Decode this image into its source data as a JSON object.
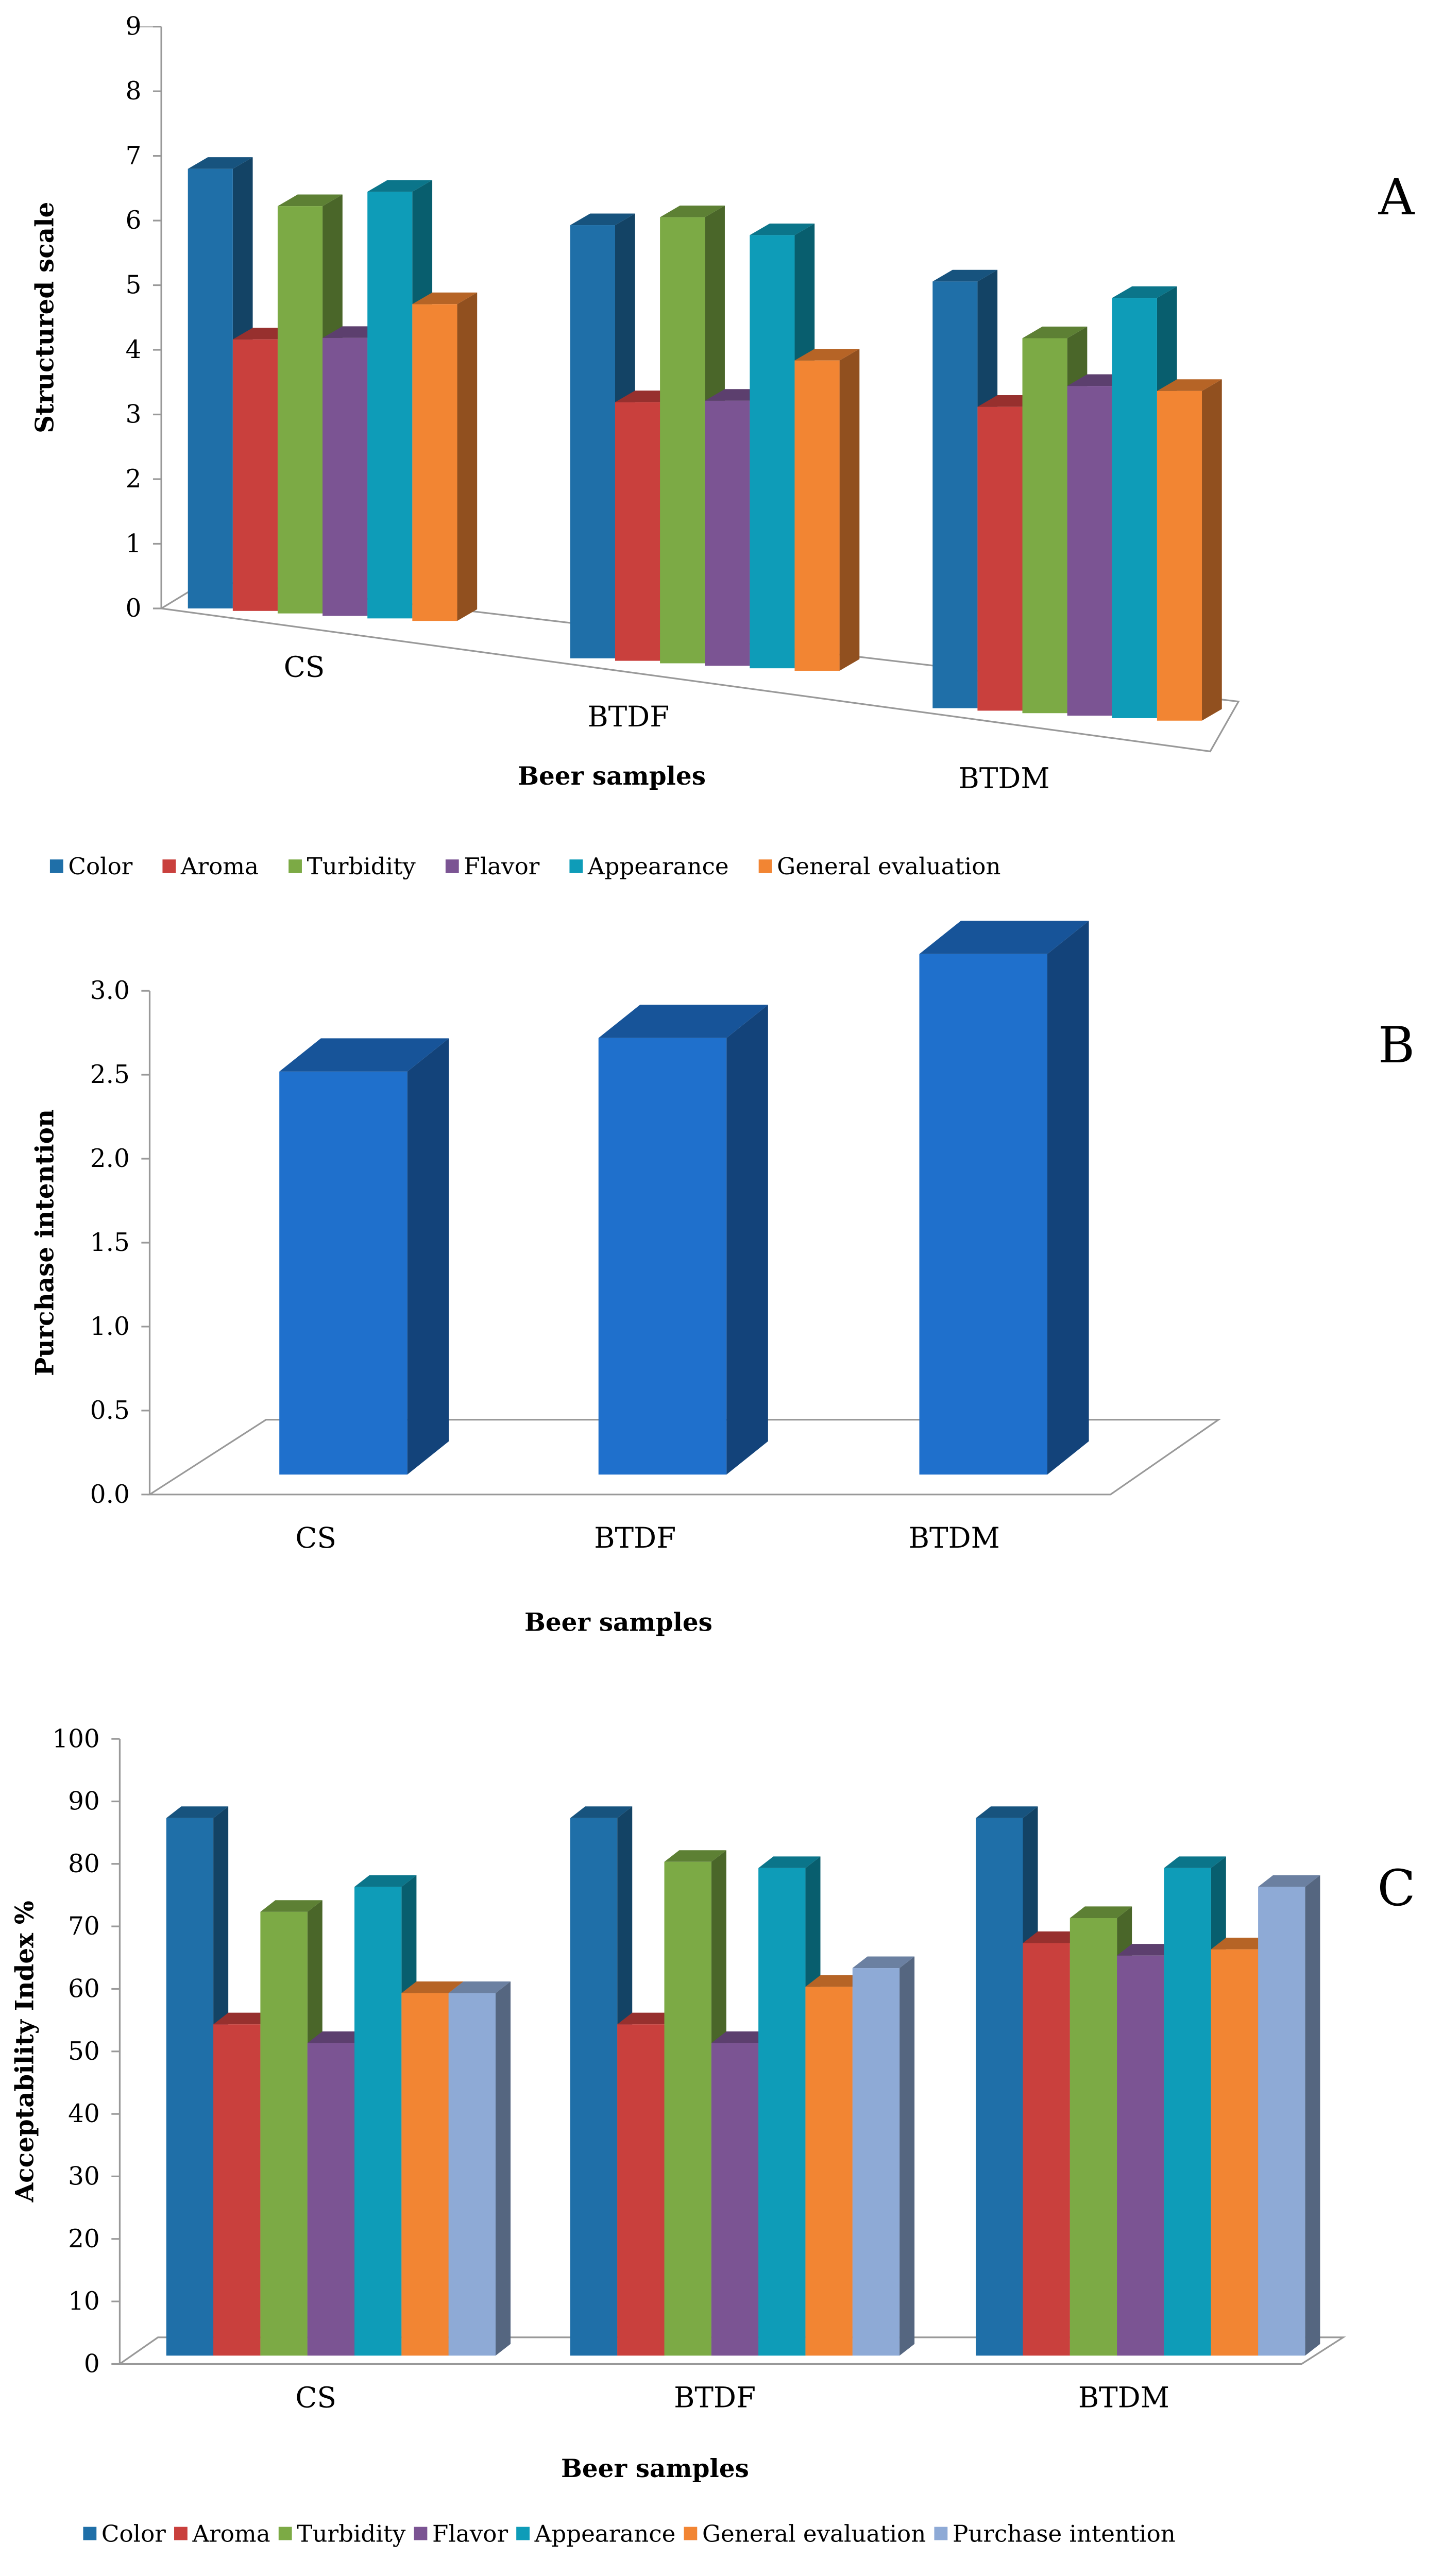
{
  "colors": {
    "Color": "#1f6fa8",
    "Aroma": "#c9403d",
    "Turbidity": "#7caa45",
    "Flavor": "#7b5493",
    "Appearance": "#0e9cb8",
    "General evaluation": "#f28533",
    "Purchase intention": "#8eaad6",
    "single": "#1f70cc"
  },
  "chart_data": [
    {
      "panel": "A",
      "type": "bar",
      "title": "",
      "xlabel": "Beer samples",
      "ylabel": "Structured scale",
      "ylim": [
        0,
        9
      ],
      "yticks": [
        "0",
        "1",
        "2",
        "3",
        "4",
        "5",
        "6",
        "7",
        "8",
        "9"
      ],
      "categories": [
        "CS",
        "BTDF",
        "BTDM"
      ],
      "series": [
        {
          "name": "Color",
          "values": [
            6.8,
            6.7,
            6.6
          ]
        },
        {
          "name": "Aroma",
          "values": [
            4.2,
            4.0,
            4.7
          ]
        },
        {
          "name": "Turbidity",
          "values": [
            6.3,
            6.9,
            5.8
          ]
        },
        {
          "name": "Flavor",
          "values": [
            4.3,
            4.1,
            5.1
          ]
        },
        {
          "name": "Appearance",
          "values": [
            6.6,
            6.7,
            6.5
          ]
        },
        {
          "name": "General evaluation",
          "values": [
            4.9,
            4.8,
            5.1
          ]
        }
      ],
      "legend": "bottom"
    },
    {
      "panel": "B",
      "type": "bar",
      "title": "",
      "xlabel": "Beer samples",
      "ylabel": "Purchase intention",
      "ylim": [
        0,
        3.0
      ],
      "yticks": [
        "0.0",
        "0.5",
        "1.0",
        "1.5",
        "2.0",
        "2.5",
        "3.0"
      ],
      "categories": [
        "CS",
        "BTDF",
        "BTDM"
      ],
      "series": [
        {
          "name": "Purchase intention",
          "values": [
            2.4,
            2.6,
            3.1
          ]
        }
      ],
      "legend": "none"
    },
    {
      "panel": "C",
      "type": "bar",
      "title": "",
      "xlabel": "Beer samples",
      "ylabel": "Acceptability Index %",
      "ylim": [
        0,
        100
      ],
      "yticks": [
        "0",
        "10",
        "20",
        "30",
        "40",
        "50",
        "60",
        "70",
        "80",
        "90",
        "100"
      ],
      "categories": [
        "CS",
        "BTDF",
        "BTDM"
      ],
      "series": [
        {
          "name": "Color",
          "values": [
            86,
            86,
            86
          ]
        },
        {
          "name": "Aroma",
          "values": [
            53,
            53,
            66
          ]
        },
        {
          "name": "Turbidity",
          "values": [
            71,
            79,
            70
          ]
        },
        {
          "name": "Flavor",
          "values": [
            50,
            50,
            64
          ]
        },
        {
          "name": "Appearance",
          "values": [
            75,
            78,
            78
          ]
        },
        {
          "name": "General evaluation",
          "values": [
            58,
            59,
            65
          ]
        },
        {
          "name": "Purchase intention",
          "values": [
            58,
            62,
            75
          ]
        }
      ],
      "legend": "bottom"
    }
  ]
}
